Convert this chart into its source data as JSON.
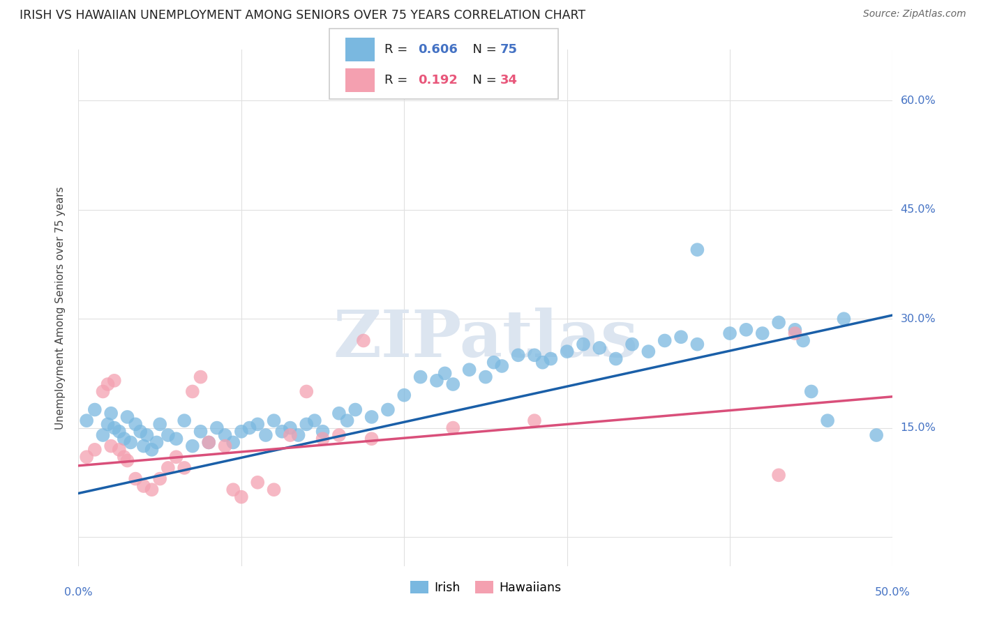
{
  "title": "IRISH VS HAWAIIAN UNEMPLOYMENT AMONG SENIORS OVER 75 YEARS CORRELATION CHART",
  "source": "Source: ZipAtlas.com",
  "ylabel": "Unemployment Among Seniors over 75 years",
  "xlim": [
    0.0,
    0.5
  ],
  "ylim": [
    -0.04,
    0.67
  ],
  "yticks": [
    0.0,
    0.15,
    0.3,
    0.45,
    0.6
  ],
  "xticks": [
    0.0,
    0.1,
    0.2,
    0.3,
    0.4,
    0.5
  ],
  "background_color": "#ffffff",
  "grid_color": "#e0e0e0",
  "watermark_text": "ZIPatlas",
  "watermark_color": "#dce5f0",
  "legend_irish_R": "0.606",
  "legend_irish_N": "75",
  "legend_hawaiian_R": "0.192",
  "legend_hawaiian_N": "34",
  "irish_color": "#7ab8e0",
  "hawaiian_color": "#f4a0b0",
  "irish_line_color": "#1a5fa8",
  "hawaiian_line_color": "#d94f7a",
  "irish_scatter_x": [
    0.005,
    0.01,
    0.015,
    0.018,
    0.02,
    0.022,
    0.025,
    0.028,
    0.03,
    0.032,
    0.035,
    0.038,
    0.04,
    0.042,
    0.045,
    0.048,
    0.05,
    0.055,
    0.06,
    0.065,
    0.07,
    0.075,
    0.08,
    0.085,
    0.09,
    0.095,
    0.1,
    0.105,
    0.11,
    0.115,
    0.12,
    0.125,
    0.13,
    0.135,
    0.14,
    0.145,
    0.15,
    0.16,
    0.165,
    0.17,
    0.18,
    0.19,
    0.2,
    0.21,
    0.22,
    0.225,
    0.23,
    0.24,
    0.25,
    0.255,
    0.26,
    0.27,
    0.28,
    0.285,
    0.29,
    0.3,
    0.31,
    0.32,
    0.33,
    0.34,
    0.35,
    0.36,
    0.37,
    0.38,
    0.38,
    0.4,
    0.41,
    0.42,
    0.43,
    0.44,
    0.445,
    0.45,
    0.46,
    0.47,
    0.49
  ],
  "irish_scatter_y": [
    0.16,
    0.175,
    0.14,
    0.155,
    0.17,
    0.15,
    0.145,
    0.135,
    0.165,
    0.13,
    0.155,
    0.145,
    0.125,
    0.14,
    0.12,
    0.13,
    0.155,
    0.14,
    0.135,
    0.16,
    0.125,
    0.145,
    0.13,
    0.15,
    0.14,
    0.13,
    0.145,
    0.15,
    0.155,
    0.14,
    0.16,
    0.145,
    0.15,
    0.14,
    0.155,
    0.16,
    0.145,
    0.17,
    0.16,
    0.175,
    0.165,
    0.175,
    0.195,
    0.22,
    0.215,
    0.225,
    0.21,
    0.23,
    0.22,
    0.24,
    0.235,
    0.25,
    0.25,
    0.24,
    0.245,
    0.255,
    0.265,
    0.26,
    0.245,
    0.265,
    0.255,
    0.27,
    0.275,
    0.265,
    0.395,
    0.28,
    0.285,
    0.28,
    0.295,
    0.285,
    0.27,
    0.2,
    0.16,
    0.3,
    0.14
  ],
  "hawaiian_scatter_x": [
    0.005,
    0.01,
    0.015,
    0.018,
    0.02,
    0.022,
    0.025,
    0.028,
    0.03,
    0.035,
    0.04,
    0.045,
    0.05,
    0.055,
    0.06,
    0.065,
    0.07,
    0.075,
    0.08,
    0.09,
    0.095,
    0.1,
    0.11,
    0.12,
    0.13,
    0.14,
    0.15,
    0.16,
    0.175,
    0.18,
    0.23,
    0.28,
    0.43,
    0.44
  ],
  "hawaiian_scatter_y": [
    0.11,
    0.12,
    0.2,
    0.21,
    0.125,
    0.215,
    0.12,
    0.11,
    0.105,
    0.08,
    0.07,
    0.065,
    0.08,
    0.095,
    0.11,
    0.095,
    0.2,
    0.22,
    0.13,
    0.125,
    0.065,
    0.055,
    0.075,
    0.065,
    0.14,
    0.2,
    0.135,
    0.14,
    0.27,
    0.135,
    0.15,
    0.16,
    0.085,
    0.28
  ],
  "irish_line_x": [
    0.0,
    0.5
  ],
  "irish_line_y": [
    0.06,
    0.305
  ],
  "hawaiian_line_x": [
    0.0,
    0.5
  ],
  "hawaiian_line_y": [
    0.098,
    0.193
  ]
}
